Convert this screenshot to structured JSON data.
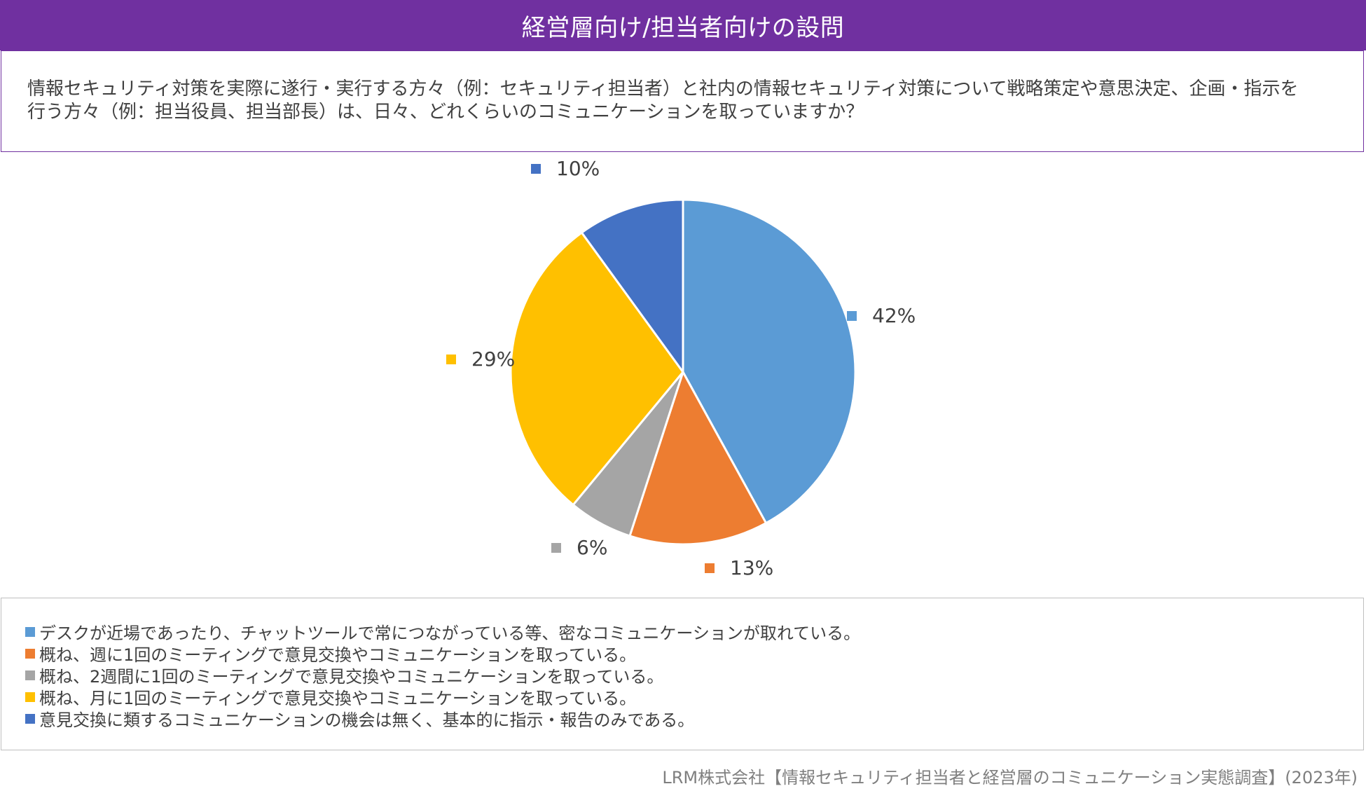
{
  "header": {
    "title": "経営層向け/担当者向けの設問"
  },
  "question": {
    "text": "情報セキュリティ対策を実際に遂行・実行する方々（例：セキュリティ担当者）と社内の情報セキュリティ対策について戦略策定や意思決定、企画・指示を行う方々（例：担当役員、担当部長）は、日々、どれくらいのコミュニケーションを取っていますか？"
  },
  "chart_data": {
    "type": "pie",
    "start_angle": "12 o'clock",
    "direction": "clockwise",
    "slices": [
      {
        "label": "デスクが近場であったり、チャットツールで常につながっている等、密なコミュニケーションが取れている。",
        "value": 42,
        "value_label": "42%",
        "color": "#5b9bd5"
      },
      {
        "label": "概ね、週に1回のミーティングで意見交換やコミュニケーションを取っている。",
        "value": 13,
        "value_label": "13%",
        "color": "#ed7d31"
      },
      {
        "label": "概ね、2週間に1回のミーティングで意見交換やコミュニケーションを取っている。",
        "value": 6,
        "value_label": "6%",
        "color": "#a5a5a5"
      },
      {
        "label": "概ね、月に1回のミーティングで意見交換やコミュニケーションを取っている。",
        "value": 29,
        "value_label": "29%",
        "color": "#ffc000"
      },
      {
        "label": "意見交換に類するコミュニケーションの機会は無く、基本的に指示・報告のみである。",
        "value": 10,
        "value_label": "10%",
        "color": "#4472c4"
      }
    ],
    "legend_position": "bottom"
  },
  "source": {
    "text": "LRM株式会社【情報セキュリティ担当者と経営層のコミュニケーション実態調査】(2023年)"
  }
}
